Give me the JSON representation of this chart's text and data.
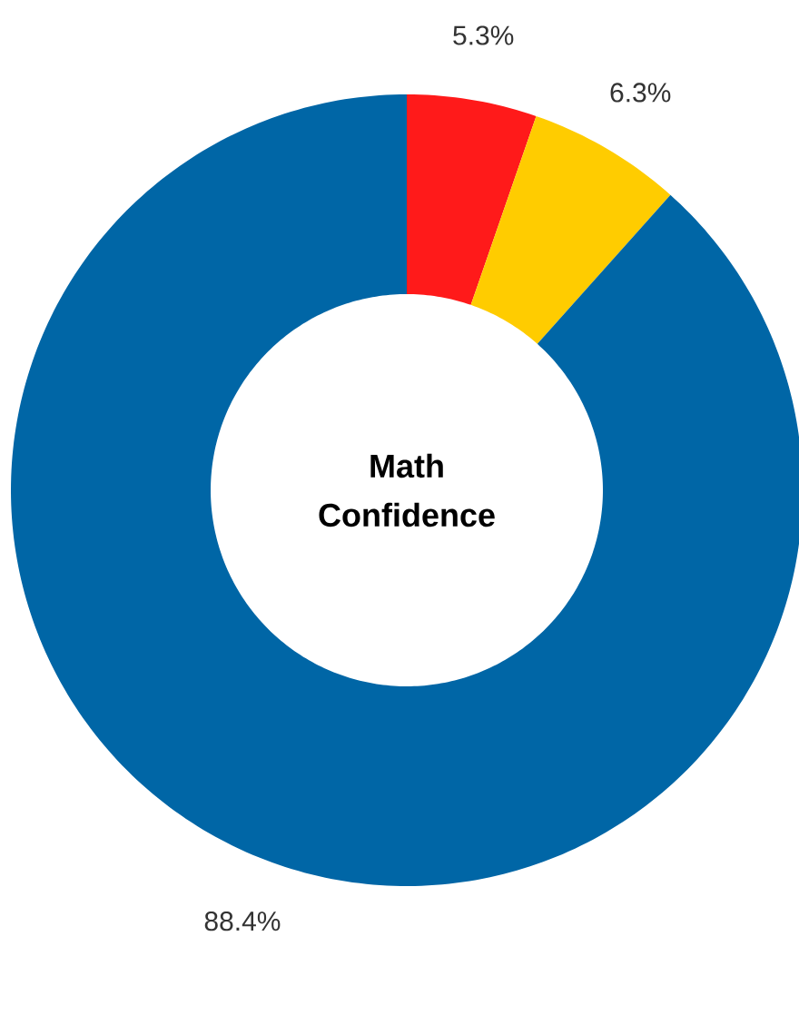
{
  "chart_data": {
    "type": "donut",
    "title": "Math Confidence",
    "categories": [
      null,
      null,
      null
    ],
    "values": [
      5.3,
      6.3,
      88.4
    ],
    "value_labels": [
      "5.3%",
      "6.3%",
      "88.4%"
    ],
    "colors": [
      "#ff1a1a",
      "#ffcc00",
      "#0066a6"
    ]
  }
}
